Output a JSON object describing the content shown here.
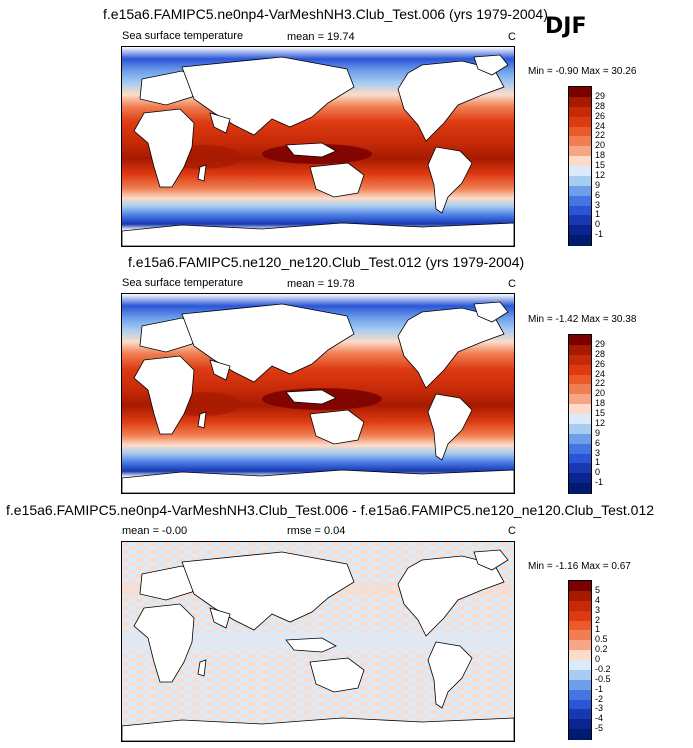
{
  "season": "DJF",
  "panels": [
    {
      "title": "f.e15a6.FAMIPC5.ne0np4-VarMeshNH3.Club_Test.006 (yrs 1979-2004)",
      "variable": "Sea surface temperature",
      "stat1": "mean =  19.74",
      "stat2": "",
      "units": "C",
      "minmax": "Min = -0.90 Max = 30.26",
      "levels": [
        "29",
        "28",
        "26",
        "24",
        "22",
        "20",
        "18",
        "15",
        "12",
        "9",
        "6",
        "3",
        "1",
        "0",
        "-1"
      ],
      "colors": [
        "#7a0000",
        "#a61a00",
        "#c62a08",
        "#de3a12",
        "#ec5a2c",
        "#f07e52",
        "#f6a684",
        "#fcdcc8",
        "#dcebfb",
        "#a6ccf2",
        "#6e9eea",
        "#4476e2",
        "#2a56d6",
        "#1838b0",
        "#0c2490",
        "#001a6e"
      ]
    },
    {
      "title": "f.e15a6.FAMIPC5.ne120_ne120.Club_Test.012 (yrs 1979-2004)",
      "variable": "Sea surface temperature",
      "stat1": "mean =  19.78",
      "stat2": "",
      "units": "C",
      "minmax": "Min = -1.42 Max = 30.38",
      "levels": [
        "29",
        "28",
        "26",
        "24",
        "22",
        "20",
        "18",
        "15",
        "12",
        "9",
        "6",
        "3",
        "1",
        "0",
        "-1"
      ],
      "colors": [
        "#7a0000",
        "#a61a00",
        "#c62a08",
        "#de3a12",
        "#ec5a2c",
        "#f07e52",
        "#f6a684",
        "#fcdcc8",
        "#dcebfb",
        "#a6ccf2",
        "#6e9eea",
        "#4476e2",
        "#2a56d6",
        "#1838b0",
        "#0c2490",
        "#001a6e"
      ]
    },
    {
      "title": "f.e15a6.FAMIPC5.ne0np4-VarMeshNH3.Club_Test.006 - f.e15a6.FAMIPC5.ne120_ne120.Club_Test.012",
      "variable": "",
      "stat1": "mean =  -0.00",
      "stat2": "rmse =  0.04",
      "units": "C",
      "minmax": "Min = -1.16 Max =  0.67",
      "levels": [
        "5",
        "4",
        "3",
        "2",
        "1",
        "0.5",
        "0.2",
        "0",
        "-0.2",
        "-0.5",
        "-1",
        "-2",
        "-3",
        "-4",
        "-5"
      ],
      "colors": [
        "#7a0000",
        "#a61a00",
        "#c62a08",
        "#de3a12",
        "#ec5a2c",
        "#f07e52",
        "#f6a684",
        "#fcdcc8",
        "#dcebfb",
        "#a6ccf2",
        "#6e9eea",
        "#4476e2",
        "#2a56d6",
        "#1838b0",
        "#0c2490",
        "#001a6e"
      ]
    }
  ]
}
